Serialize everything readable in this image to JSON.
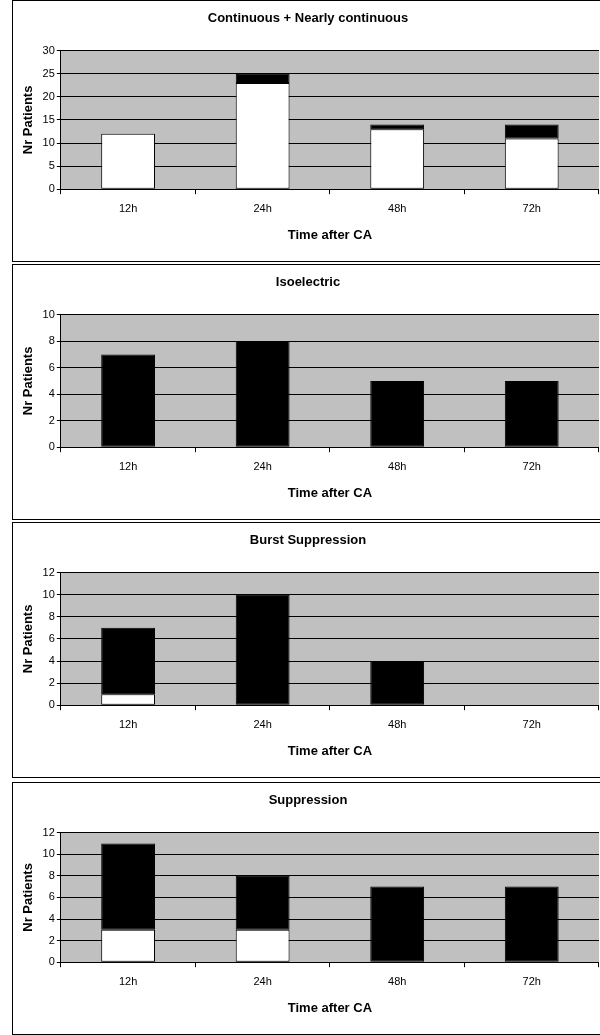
{
  "chart_data": [
    {
      "type": "bar",
      "title": "Continuous + Nearly continuous",
      "xlabel": "Time after CA",
      "ylabel": "Nr Patients",
      "categories": [
        "12h",
        "24h",
        "48h",
        "72h"
      ],
      "stacked": true,
      "grid": "y",
      "legend": false,
      "ylim": [
        0,
        30
      ],
      "yticks": [
        0,
        5,
        10,
        15,
        20,
        25,
        30
      ],
      "series": [
        {
          "color": "#ffffff",
          "values": [
            12,
            23,
            13,
            11
          ]
        },
        {
          "color": "#000000",
          "values": [
            0,
            2,
            1,
            3
          ]
        }
      ]
    },
    {
      "type": "bar",
      "title": "Isoelectric",
      "xlabel": "Time after CA",
      "ylabel": "Nr Patients",
      "categories": [
        "12h",
        "24h",
        "48h",
        "72h"
      ],
      "stacked": true,
      "grid": "y",
      "legend": false,
      "ylim": [
        0,
        10
      ],
      "yticks": [
        0,
        2,
        4,
        6,
        8,
        10
      ],
      "series": [
        {
          "color": "#ffffff",
          "values": [
            0,
            0,
            0,
            0
          ]
        },
        {
          "color": "#000000",
          "values": [
            7,
            8,
            5,
            5
          ]
        }
      ]
    },
    {
      "type": "bar",
      "title": "Burst Suppression",
      "xlabel": "Time after CA",
      "ylabel": "Nr Patients",
      "categories": [
        "12h",
        "24h",
        "48h",
        "72h"
      ],
      "stacked": true,
      "grid": "y",
      "legend": false,
      "ylim": [
        0,
        12
      ],
      "yticks": [
        0,
        2,
        4,
        6,
        8,
        10,
        12
      ],
      "series": [
        {
          "color": "#ffffff",
          "values": [
            1,
            0,
            0,
            0
          ]
        },
        {
          "color": "#000000",
          "values": [
            6,
            10,
            4,
            0
          ]
        }
      ]
    },
    {
      "type": "bar",
      "title": "Suppression",
      "xlabel": "Time after CA",
      "ylabel": "Nr Patients",
      "categories": [
        "12h",
        "24h",
        "48h",
        "72h"
      ],
      "stacked": true,
      "grid": "y",
      "legend": false,
      "ylim": [
        0,
        12
      ],
      "yticks": [
        0,
        2,
        4,
        6,
        8,
        10,
        12
      ],
      "series": [
        {
          "color": "#ffffff",
          "values": [
            3,
            3,
            0,
            0
          ]
        },
        {
          "color": "#000000",
          "values": [
            8,
            5,
            7,
            7
          ]
        }
      ]
    }
  ]
}
